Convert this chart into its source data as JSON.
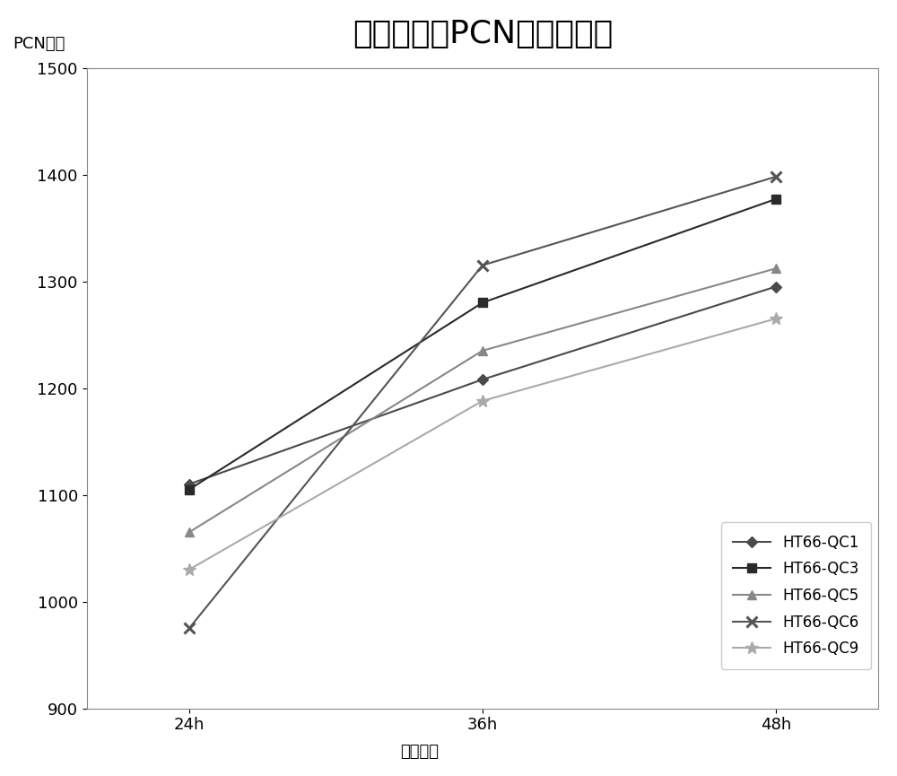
{
  "title": "高产融合子PCN产量变化图",
  "xlabel": "发酵时间",
  "ylabel": "PCN产量",
  "x_labels": [
    "24h",
    "36h",
    "48h"
  ],
  "x_values": [
    0,
    1,
    2
  ],
  "series": [
    {
      "label": "HT66-QC1",
      "values": [
        1110,
        1208,
        1295
      ],
      "color": "#4a4a4a",
      "marker": "D",
      "linewidth": 1.5,
      "markersize": 6
    },
    {
      "label": "HT66-QC3",
      "values": [
        1105,
        1280,
        1377
      ],
      "color": "#2a2a2a",
      "marker": "s",
      "linewidth": 1.5,
      "markersize": 7
    },
    {
      "label": "HT66-QC5",
      "values": [
        1065,
        1235,
        1312
      ],
      "color": "#888888",
      "marker": "^",
      "linewidth": 1.5,
      "markersize": 7
    },
    {
      "label": "HT66-QC6",
      "values": [
        975,
        1315,
        1398
      ],
      "color": "#555555",
      "marker": "x",
      "linewidth": 1.5,
      "markersize": 9,
      "markeredgewidth": 2.2
    },
    {
      "label": "HT66-QC9",
      "values": [
        1030,
        1188,
        1265
      ],
      "color": "#aaaaaa",
      "marker": "*",
      "linewidth": 1.5,
      "markersize": 10
    }
  ],
  "ylim": [
    900,
    1500
  ],
  "yticks": [
    900,
    1000,
    1100,
    1200,
    1300,
    1400,
    1500
  ],
  "xlim": [
    -0.35,
    2.35
  ],
  "figsize": [
    10.0,
    8.65
  ],
  "dpi": 100,
  "title_fontsize": 26,
  "label_fontsize": 13,
  "tick_fontsize": 13,
  "legend_fontsize": 12
}
